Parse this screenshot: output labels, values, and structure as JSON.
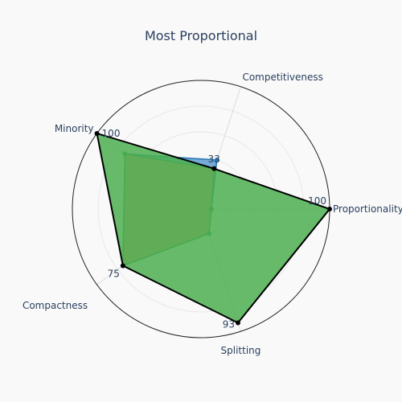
{
  "chart_data": {
    "type": "radar",
    "title": "Most Proportional",
    "axes": [
      "Competitiveness",
      "Proportionality",
      "Splitting",
      "Compactness",
      "Minority"
    ],
    "range": [
      0,
      100
    ],
    "series": [
      {
        "values": [
          33,
          100,
          93,
          75,
          100
        ],
        "fill_color": "#4caf50",
        "line_color": "#000000",
        "marker_color": "#000000",
        "labels": [
          "33",
          "100",
          "93",
          "75",
          "100"
        ]
      },
      {
        "values": [
          33,
          8,
          20,
          75,
          73
        ],
        "fill_color": "#f4a261",
        "line_color": "#2e8b57",
        "marker_color": "#2e8b57"
      },
      {
        "values": [
          40,
          8,
          20,
          75,
          73
        ],
        "fill_color": "#4a90c8",
        "line_color": "#1f77b4",
        "marker_color": "#1f77b4"
      }
    ],
    "grid": true,
    "legend": "none"
  }
}
